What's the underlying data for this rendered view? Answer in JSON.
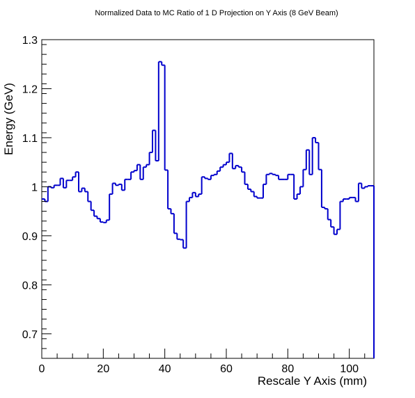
{
  "chart_data": {
    "type": "line",
    "title": "Normalized Data to MC Ratio of 1 D Projection on Y Axis (8 GeV Beam)",
    "xlabel": "Rescale Y Axis (mm)",
    "ylabel": "Energy (GeV)",
    "xlim": [
      0,
      108
    ],
    "ylim": [
      0.65,
      1.3
    ],
    "x_ticks": [
      0,
      20,
      40,
      60,
      80,
      100
    ],
    "x_tick_labels": [
      "0",
      "20",
      "40",
      "60",
      "80",
      "100"
    ],
    "y_ticks": [
      0.7,
      0.8,
      0.9,
      1.0,
      1.1,
      1.2,
      1.3
    ],
    "y_tick_labels": [
      "0.7",
      "0.8",
      "0.9",
      "1",
      "1.1",
      "1.2",
      "1.3"
    ],
    "grid": false,
    "legend": "none",
    "colors": {
      "series": "#0000cc",
      "axes": "#000000"
    },
    "series": [
      {
        "style": "step-histogram",
        "bin_width": 1,
        "values": [
          0.975,
          0.97,
          1.0,
          0.998,
          1.003,
          1.003,
          1.017,
          0.998,
          1.013,
          1.013,
          1.02,
          1.03,
          0.99,
          0.997,
          0.99,
          0.97,
          0.952,
          0.94,
          0.935,
          0.928,
          0.927,
          0.932,
          0.985,
          1.007,
          1.003,
          1.005,
          0.993,
          1.015,
          1.015,
          1.03,
          1.033,
          1.045,
          1.015,
          1.04,
          1.045,
          1.07,
          1.115,
          1.053,
          1.255,
          1.248,
          1.034,
          0.955,
          0.945,
          0.905,
          0.893,
          0.892,
          0.875,
          0.97,
          0.978,
          0.988,
          0.98,
          0.985,
          1.02,
          1.017,
          1.015,
          1.023,
          1.025,
          1.032,
          1.04,
          1.045,
          1.05,
          1.068,
          1.037,
          1.043,
          1.04,
          1.03,
          1.005,
          0.995,
          0.99,
          0.98,
          0.977,
          0.977,
          1.005,
          1.025,
          1.027,
          1.025,
          1.023,
          1.015,
          1.015,
          1.015,
          1.025,
          1.025,
          0.975,
          0.985,
          1.0,
          1.035,
          1.075,
          1.025,
          1.1,
          1.09,
          1.035,
          0.958,
          0.955,
          0.933,
          0.918,
          0.903,
          0.913,
          0.97,
          0.975,
          0.975,
          0.978,
          0.978,
          0.97,
          1.007,
          0.997,
          1.0,
          1.002,
          1.002,
          0.65
        ]
      }
    ]
  }
}
